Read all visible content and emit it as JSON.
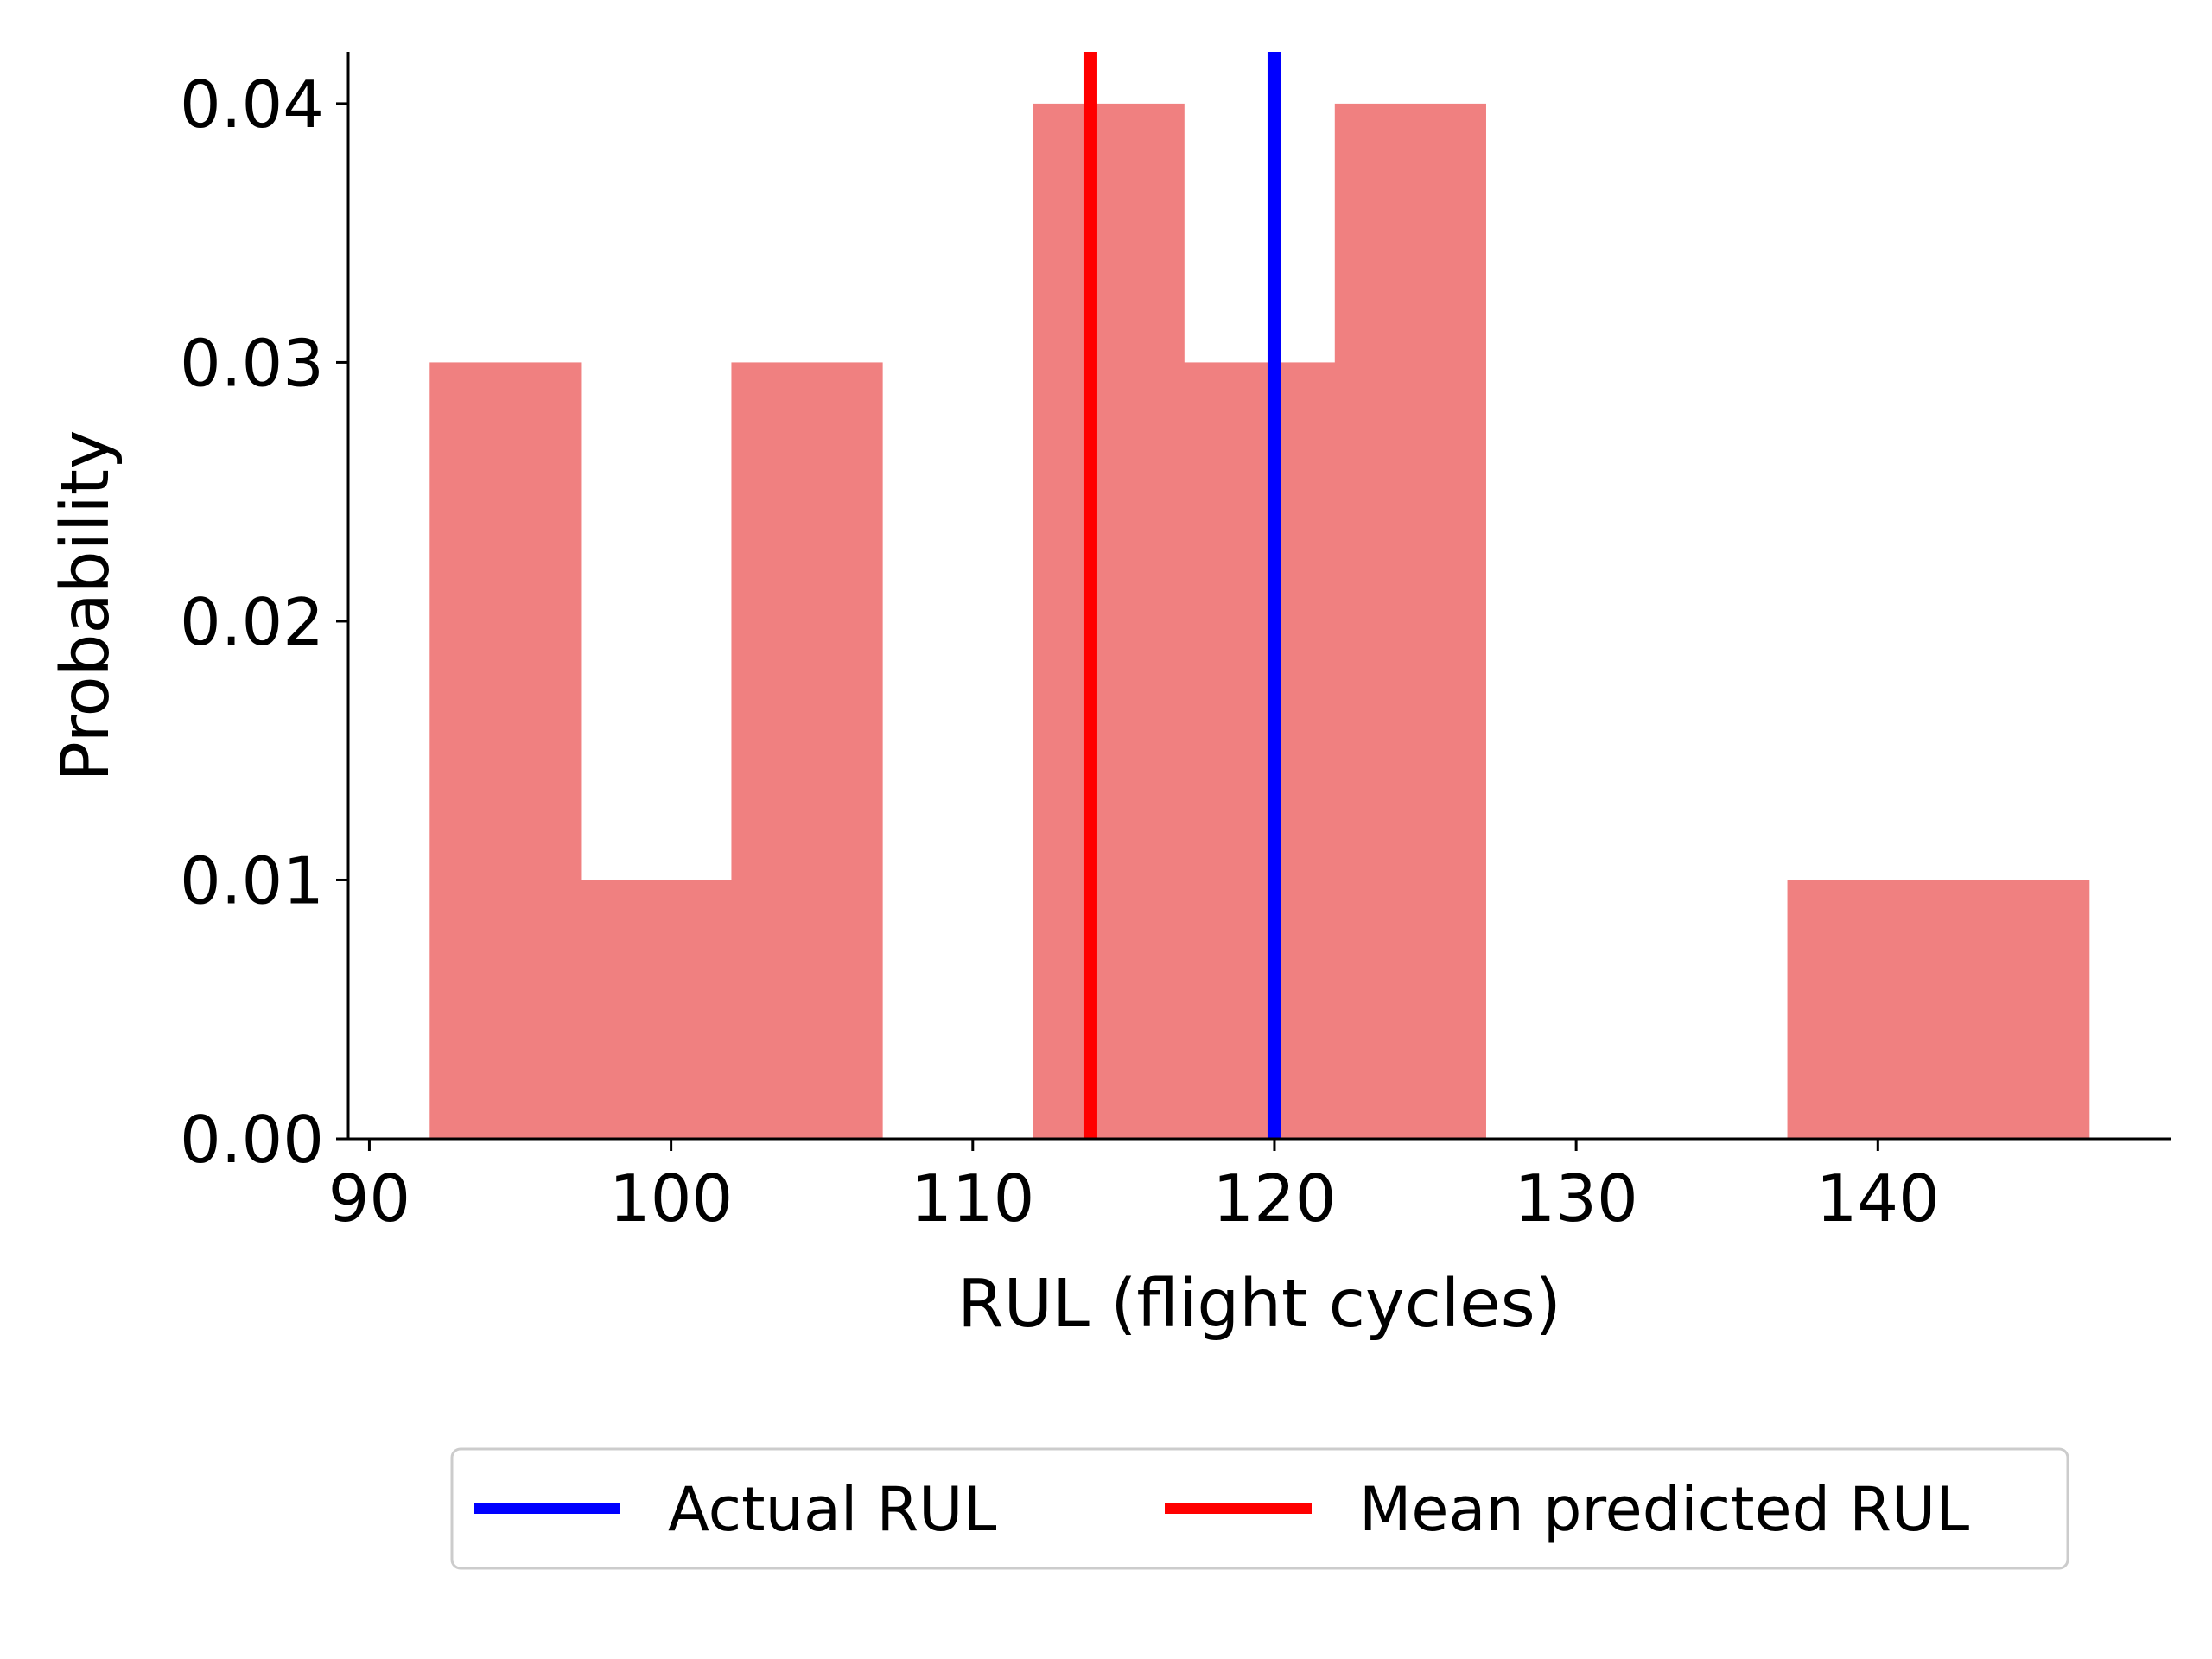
{
  "chart_data": {
    "type": "bar",
    "title": "",
    "xlabel": "RUL (flight cycles)",
    "ylabel": "Probability",
    "xlim": [
      89.3,
      149.7
    ],
    "ylim": [
      0.0,
      0.042
    ],
    "xticks": [
      90,
      100,
      110,
      120,
      130,
      140
    ],
    "xtick_labels": [
      "90",
      "100",
      "110",
      "120",
      "130",
      "140"
    ],
    "yticks": [
      0.0,
      0.01,
      0.02,
      0.03,
      0.04
    ],
    "ytick_labels": [
      "0.00",
      "0.01",
      "0.02",
      "0.03",
      "0.04"
    ],
    "bins": [
      {
        "x0": 92,
        "x1": 97,
        "value": 0.03
      },
      {
        "x0": 97,
        "x1": 102,
        "value": 0.01
      },
      {
        "x0": 102,
        "x1": 107,
        "value": 0.03
      },
      {
        "x0": 107,
        "x1": 112,
        "value": 0.0
      },
      {
        "x0": 112,
        "x1": 117,
        "value": 0.04
      },
      {
        "x0": 117,
        "x1": 122,
        "value": 0.03
      },
      {
        "x0": 122,
        "x1": 127,
        "value": 0.04
      },
      {
        "x0": 127,
        "x1": 132,
        "value": 0.0
      },
      {
        "x0": 132,
        "x1": 137,
        "value": 0.0
      },
      {
        "x0": 137,
        "x1": 142,
        "value": 0.01
      },
      {
        "x0": 142,
        "x1": 147,
        "value": 0.01
      }
    ],
    "bar_color": "#f08080",
    "vlines": [
      {
        "name": "Actual RUL",
        "x": 120,
        "color": "#0000ff"
      },
      {
        "name": "Mean predicted RUL",
        "x": 113.9,
        "color": "#ff0000"
      }
    ],
    "legend": {
      "position": "bottom-center-outside",
      "entries": [
        {
          "label": "Actual RUL",
          "color": "#0000ff"
        },
        {
          "label": "Mean predicted RUL",
          "color": "#ff0000"
        }
      ]
    },
    "grid": false
  }
}
